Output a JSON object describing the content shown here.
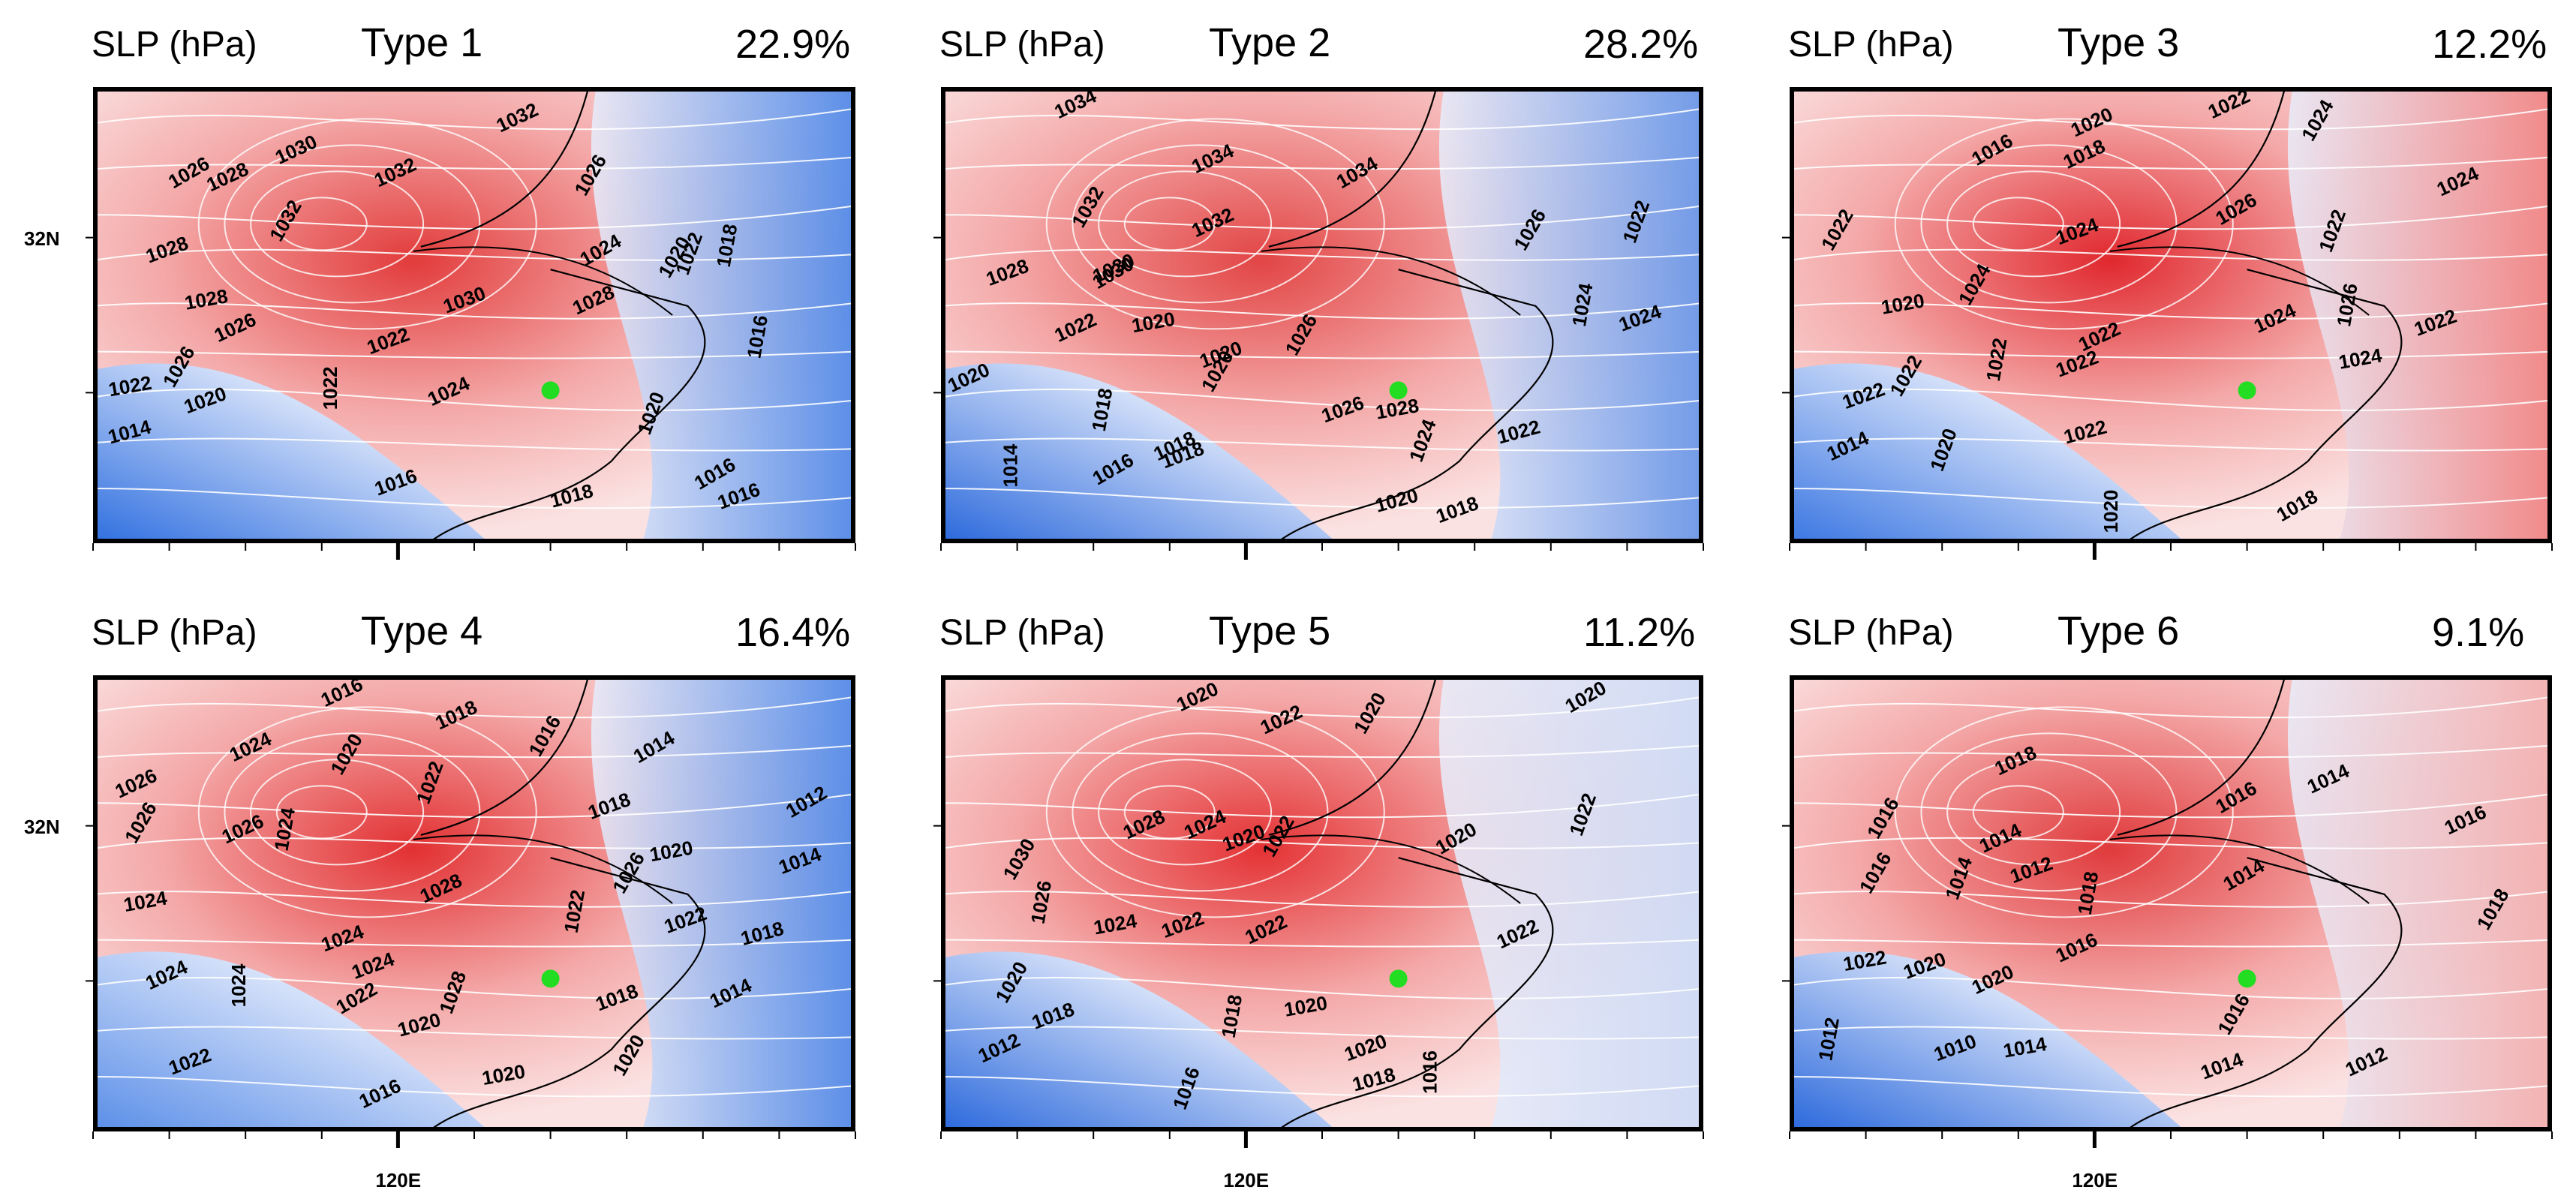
{
  "panels": [
    {
      "variable_label": "SLP (hPa)",
      "type_label": "Type 1",
      "frequency": "22.9%",
      "lat_label": "32N",
      "lon_label": "",
      "center_color": "#e23b3b",
      "west_color": "#2f6fe0",
      "east_color": "#3f7fe8",
      "contour_labels": [
        "1032",
        "1030",
        "1032",
        "1026",
        "1028",
        "1032",
        "1026",
        "1022",
        "1028",
        "1024",
        "1020",
        "1018",
        "1028",
        "1030",
        "1028",
        "1026",
        "1026",
        "1016",
        "1022",
        "1022",
        "1020",
        "1024",
        "1020",
        "1014",
        "1022",
        "1016",
        "1016",
        "1018",
        "1016"
      ]
    },
    {
      "variable_label": "SLP (hPa)",
      "type_label": "Type 2",
      "frequency": "28.2%",
      "lat_label": "",
      "lon_label": "",
      "center_color": "#e24545",
      "west_color": "#2a68dc",
      "east_color": "#5a8ee8",
      "contour_labels": [
        "1034",
        "1034",
        "1032",
        "1034",
        "1032",
        "1030",
        "1026",
        "1022",
        "1028",
        "1030",
        "1026",
        "1024",
        "1020",
        "1024",
        "1022",
        "1020",
        "1020",
        "1018",
        "1026",
        "1028",
        "1020",
        "1018",
        "1024",
        "1022",
        "1014",
        "1016",
        "1018",
        "1020",
        "1018"
      ]
    },
    {
      "variable_label": "SLP (hPa)",
      "type_label": "Type 3",
      "frequency": "12.2%",
      "lat_label": "",
      "lon_label": "",
      "center_color": "#e0282e",
      "west_color": "#3a76e2",
      "east_color": "#f07a7a",
      "contour_labels": [
        "1022",
        "1020",
        "1024",
        "1016",
        "1018",
        "1024",
        "1022",
        "1022",
        "1024",
        "1026",
        "1024",
        "1026",
        "1020",
        "1022",
        "1022",
        "1024",
        "1022",
        "1022",
        "1022",
        "1024",
        "1022",
        "1014",
        "1020",
        "1022",
        "1020",
        "1018"
      ]
    },
    {
      "variable_label": "SLP (hPa)",
      "type_label": "Type 4",
      "frequency": "16.4%",
      "lat_label": "32N",
      "lon_label": "120E",
      "center_color": "#e23032",
      "west_color": "#5a8ee8",
      "east_color": "#3f7fe8",
      "contour_labels": [
        "1016",
        "1018",
        "1016",
        "1014",
        "1026",
        "1024",
        "1020",
        "1022",
        "1018",
        "1012",
        "1026",
        "1024",
        "1020",
        "1014",
        "1026",
        "1028",
        "1026",
        "1022",
        "1022",
        "1024",
        "1024",
        "1024",
        "1028",
        "1018",
        "1024",
        "1022",
        "1024",
        "1020",
        "1018",
        "1014",
        "1020",
        "1022",
        "1020",
        "1016"
      ]
    },
    {
      "variable_label": "SLP (hPa)",
      "type_label": "Type 5",
      "frequency": "11.2%",
      "lat_label": "",
      "lon_label": "120E",
      "center_color": "#e43234",
      "west_color": "#2a68dc",
      "east_color": "#c9d9f7",
      "contour_labels": [
        "1020",
        "1022",
        "1020",
        "1020",
        "1028",
        "1024",
        "1022",
        "1022",
        "1020",
        "1020",
        "1030",
        "1026",
        "1024",
        "1022",
        "1022",
        "1022",
        "1020",
        "1018",
        "1018",
        "1020",
        "1020",
        "1012",
        "1016",
        "1018",
        "1016"
      ]
    },
    {
      "variable_label": "SLP (hPa)",
      "type_label": "Type 6",
      "frequency": "9.1%",
      "lat_label": "",
      "lon_label": "120E",
      "center_color": "#e03a3c",
      "west_color": "#2a68dc",
      "east_color": "#f2aaaa",
      "contour_labels": [
        "1018",
        "1014",
        "1016",
        "1016",
        "1014",
        "1016",
        "1016",
        "1014",
        "1012",
        "1014",
        "1018",
        "1018",
        "1022",
        "1020",
        "1016",
        "1020",
        "1016",
        "1012",
        "1010",
        "1014",
        "1014",
        "1012"
      ]
    }
  ],
  "marker_color": "#22dd22"
}
